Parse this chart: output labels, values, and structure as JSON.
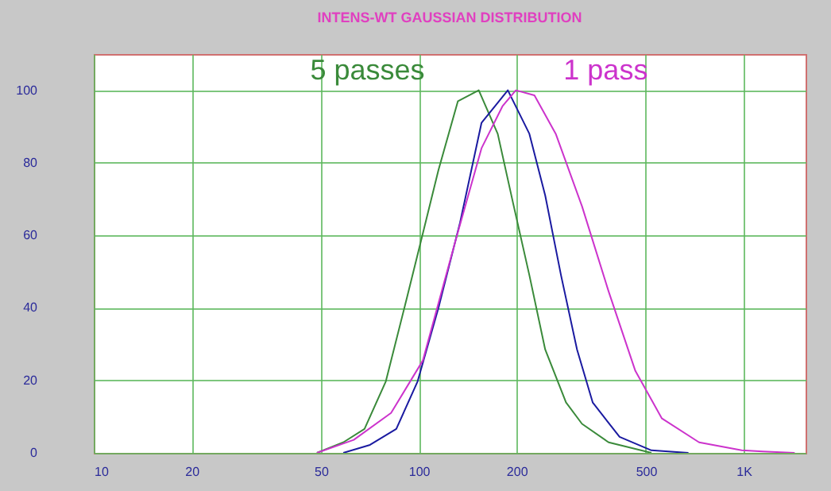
{
  "chart_data": {
    "type": "line",
    "title": "INTENS-WT GAUSSIAN DISTRIBUTION",
    "log": "x",
    "grid": true,
    "xlim": [
      10,
      1550
    ],
    "xticks": [
      10,
      20,
      50,
      100,
      200,
      500,
      {
        "value": 1000,
        "label": "1K"
      }
    ],
    "ylim": [
      0,
      110
    ],
    "yticks": [
      0,
      20,
      40,
      60,
      80,
      100
    ],
    "series": [
      {
        "name": "5 passes",
        "color": "#3a8a3a",
        "x": [
          48.6,
          58.6,
          68.1,
          79.2,
          92.1,
          103,
          115,
          132,
          153,
          175,
          195,
          219,
          245,
          284,
          318,
          384,
          520
        ],
        "values": [
          0,
          2.9,
          6.6,
          19.7,
          43,
          60.6,
          78,
          97,
          100,
          88,
          69,
          49,
          28.5,
          13.9,
          8,
          2.9,
          0
        ]
      },
      {
        "color": "#1a1aa0",
        "x": [
          58.6,
          70.8,
          85.3,
          99.2,
          115,
          134,
          156,
          188,
          219,
          245,
          274,
          307,
          343,
          415,
          520,
          676
        ],
        "values": [
          0,
          2.2,
          6.6,
          19.7,
          40,
          63.5,
          91,
          100,
          88,
          71,
          49,
          28.5,
          13.9,
          4.4,
          0.7,
          0
        ]
      },
      {
        "name": "1 pass",
        "color": "#cc33cc",
        "x": [
          48.6,
          63.1,
          82.2,
          103,
          129,
          156,
          181,
          199,
          227,
          264,
          318,
          384,
          464,
          560,
          729,
          986,
          1144,
          1435
        ],
        "values": [
          0,
          3.6,
          11,
          25.5,
          57.7,
          84,
          95.6,
          100,
          98.6,
          88,
          68,
          44.5,
          22.6,
          9.5,
          2.9,
          0.7,
          0.4,
          0
        ]
      }
    ]
  }
}
